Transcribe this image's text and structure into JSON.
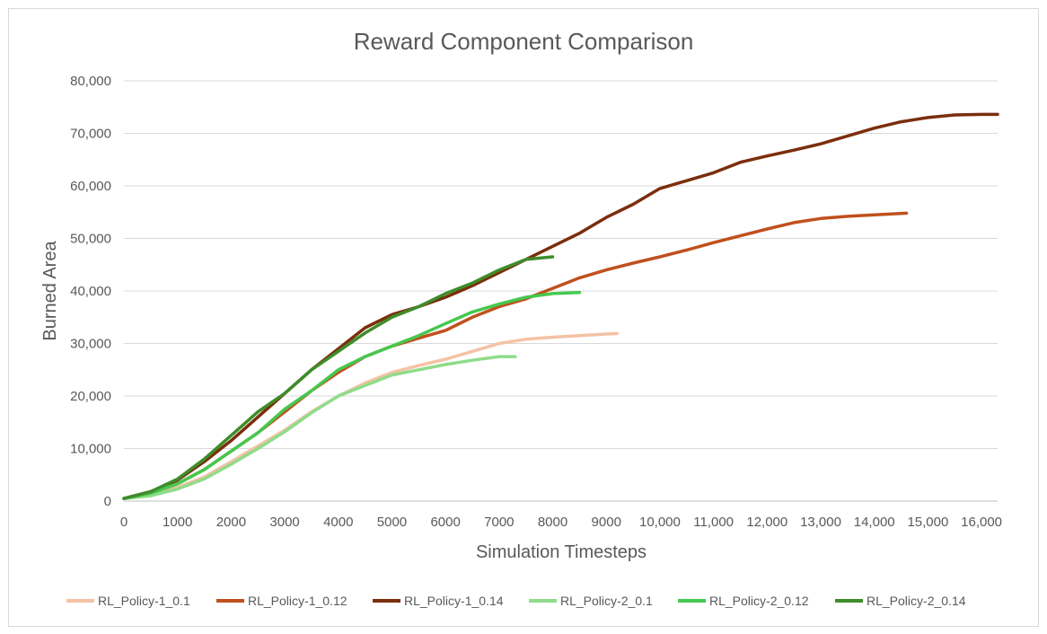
{
  "chart_data": {
    "type": "line",
    "title": "Reward Component Comparison",
    "xlabel": "Simulation Timesteps",
    "ylabel": "Burned Area",
    "xlim": [
      0,
      16300
    ],
    "ylim": [
      0,
      80000
    ],
    "x_ticks": [
      "0",
      "1000",
      "2000",
      "3000",
      "4000",
      "5000",
      "6000",
      "7000",
      "8000",
      "9000",
      "10,000",
      "11,000",
      "12,000",
      "13,000",
      "14,000",
      "15,000",
      "16,000"
    ],
    "y_ticks": [
      "0",
      "10,000",
      "20,000",
      "30,000",
      "40,000",
      "50,000",
      "60,000",
      "70,000",
      "80,000"
    ],
    "grid": "horizontal",
    "legend_position": "bottom",
    "series": [
      {
        "name": "RL_Policy-1_0.1",
        "color": "#f4c2a4",
        "x": [
          0,
          500,
          1000,
          1500,
          2000,
          2500,
          3000,
          3500,
          4000,
          4500,
          5000,
          5500,
          6000,
          6500,
          7000,
          7500,
          8000,
          8500,
          9000,
          9200
        ],
        "y": [
          500,
          1200,
          2600,
          4600,
          7500,
          10500,
          13500,
          17000,
          20000,
          22500,
          24500,
          25800,
          27000,
          28500,
          30000,
          30800,
          31200,
          31500,
          31800,
          31900
        ]
      },
      {
        "name": "RL_Policy-1_0.12",
        "color": "#c0501e",
        "x": [
          0,
          500,
          1000,
          1500,
          2000,
          2500,
          3000,
          3500,
          4000,
          4500,
          5000,
          5500,
          6000,
          6500,
          7000,
          7500,
          8000,
          8500,
          9000,
          9500,
          10000,
          10500,
          11000,
          11500,
          12000,
          12500,
          13000,
          13500,
          14000,
          14600
        ],
        "y": [
          500,
          1500,
          3300,
          6000,
          9500,
          13000,
          17000,
          21000,
          24500,
          27500,
          29500,
          31000,
          32500,
          35000,
          37000,
          38500,
          40500,
          42500,
          44000,
          45300,
          46500,
          47800,
          49200,
          50500,
          51800,
          53000,
          53800,
          54200,
          54500,
          54800
        ]
      },
      {
        "name": "RL_Policy-1_0.14",
        "color": "#7b2e0c",
        "x": [
          0,
          500,
          1000,
          1500,
          2000,
          2500,
          3000,
          3500,
          4000,
          4500,
          5000,
          5500,
          6000,
          6500,
          7000,
          7500,
          8000,
          8500,
          9000,
          9500,
          10000,
          10500,
          11000,
          11500,
          12000,
          12500,
          13000,
          13500,
          14000,
          14500,
          15000,
          15500,
          16000,
          16300
        ],
        "y": [
          500,
          1800,
          4000,
          7500,
          11500,
          16000,
          20500,
          25000,
          29000,
          33000,
          35500,
          37000,
          38800,
          41000,
          43500,
          46000,
          48500,
          51000,
          54000,
          56500,
          59500,
          61000,
          62500,
          64500,
          65700,
          66800,
          68000,
          69500,
          71000,
          72200,
          73000,
          73500,
          73600,
          73600
        ]
      },
      {
        "name": "RL_Policy-2_0.1",
        "color": "#8fdc8a",
        "x": [
          0,
          500,
          1000,
          1500,
          2000,
          2500,
          3000,
          3500,
          4000,
          4500,
          5000,
          5500,
          6000,
          6500,
          7000,
          7300
        ],
        "y": [
          500,
          1000,
          2300,
          4200,
          7000,
          10000,
          13200,
          16800,
          20000,
          22000,
          24000,
          25000,
          26000,
          26800,
          27500,
          27500
        ]
      },
      {
        "name": "RL_Policy-2_0.12",
        "color": "#46c84f",
        "x": [
          0,
          500,
          1000,
          1500,
          2000,
          2500,
          3000,
          3500,
          4000,
          4500,
          5000,
          5500,
          6000,
          6500,
          7000,
          7500,
          8000,
          8500
        ],
        "y": [
          500,
          1500,
          3300,
          6000,
          9500,
          13000,
          17500,
          21000,
          25000,
          27500,
          29500,
          31500,
          33800,
          36000,
          37500,
          38800,
          39500,
          39700
        ]
      },
      {
        "name": "RL_Policy-2_0.14",
        "color": "#3e8d2a",
        "x": [
          0,
          500,
          1000,
          1500,
          2000,
          2500,
          3000,
          3500,
          4000,
          4500,
          5000,
          5500,
          6000,
          6500,
          7000,
          7500,
          8000
        ],
        "y": [
          500,
          1800,
          4200,
          8000,
          12500,
          17000,
          20500,
          25000,
          28500,
          32000,
          35000,
          37000,
          39500,
          41500,
          44000,
          46000,
          46500
        ]
      }
    ]
  }
}
